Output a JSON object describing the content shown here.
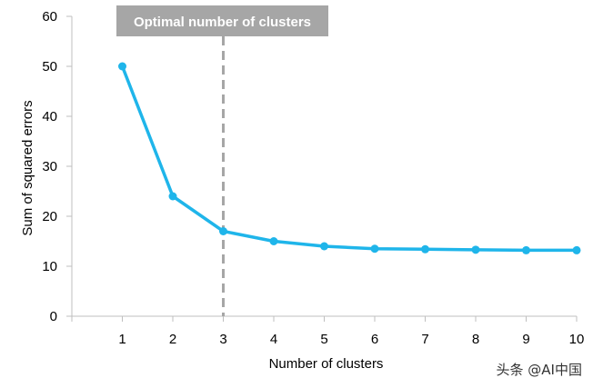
{
  "chart_data": {
    "type": "line",
    "xlabel": "Number of clusters",
    "ylabel": "Sum of squared errors",
    "x": [
      1,
      2,
      3,
      4,
      5,
      6,
      7,
      8,
      9,
      10
    ],
    "series": [
      {
        "values": [
          50,
          24,
          17,
          15,
          14,
          13.5,
          13.4,
          13.3,
          13.2,
          13.2
        ]
      }
    ],
    "xlim": [
      0,
      10
    ],
    "ylim": [
      0,
      60
    ],
    "xticks": [
      1,
      2,
      3,
      4,
      5,
      6,
      7,
      8,
      9,
      10
    ],
    "yticks": [
      0,
      10,
      20,
      30,
      40,
      50,
      60
    ],
    "grid": false,
    "annotation": {
      "label": "Optimal number of clusters",
      "x": 3,
      "style": "dashed vertical line"
    },
    "colors": {
      "line": "#1fb5ea",
      "annotation_line": "#a6a6a6",
      "annotation_box": "#a6a6a6",
      "axis": "#bfbfbf"
    }
  },
  "watermark": "头条 @AI中国"
}
